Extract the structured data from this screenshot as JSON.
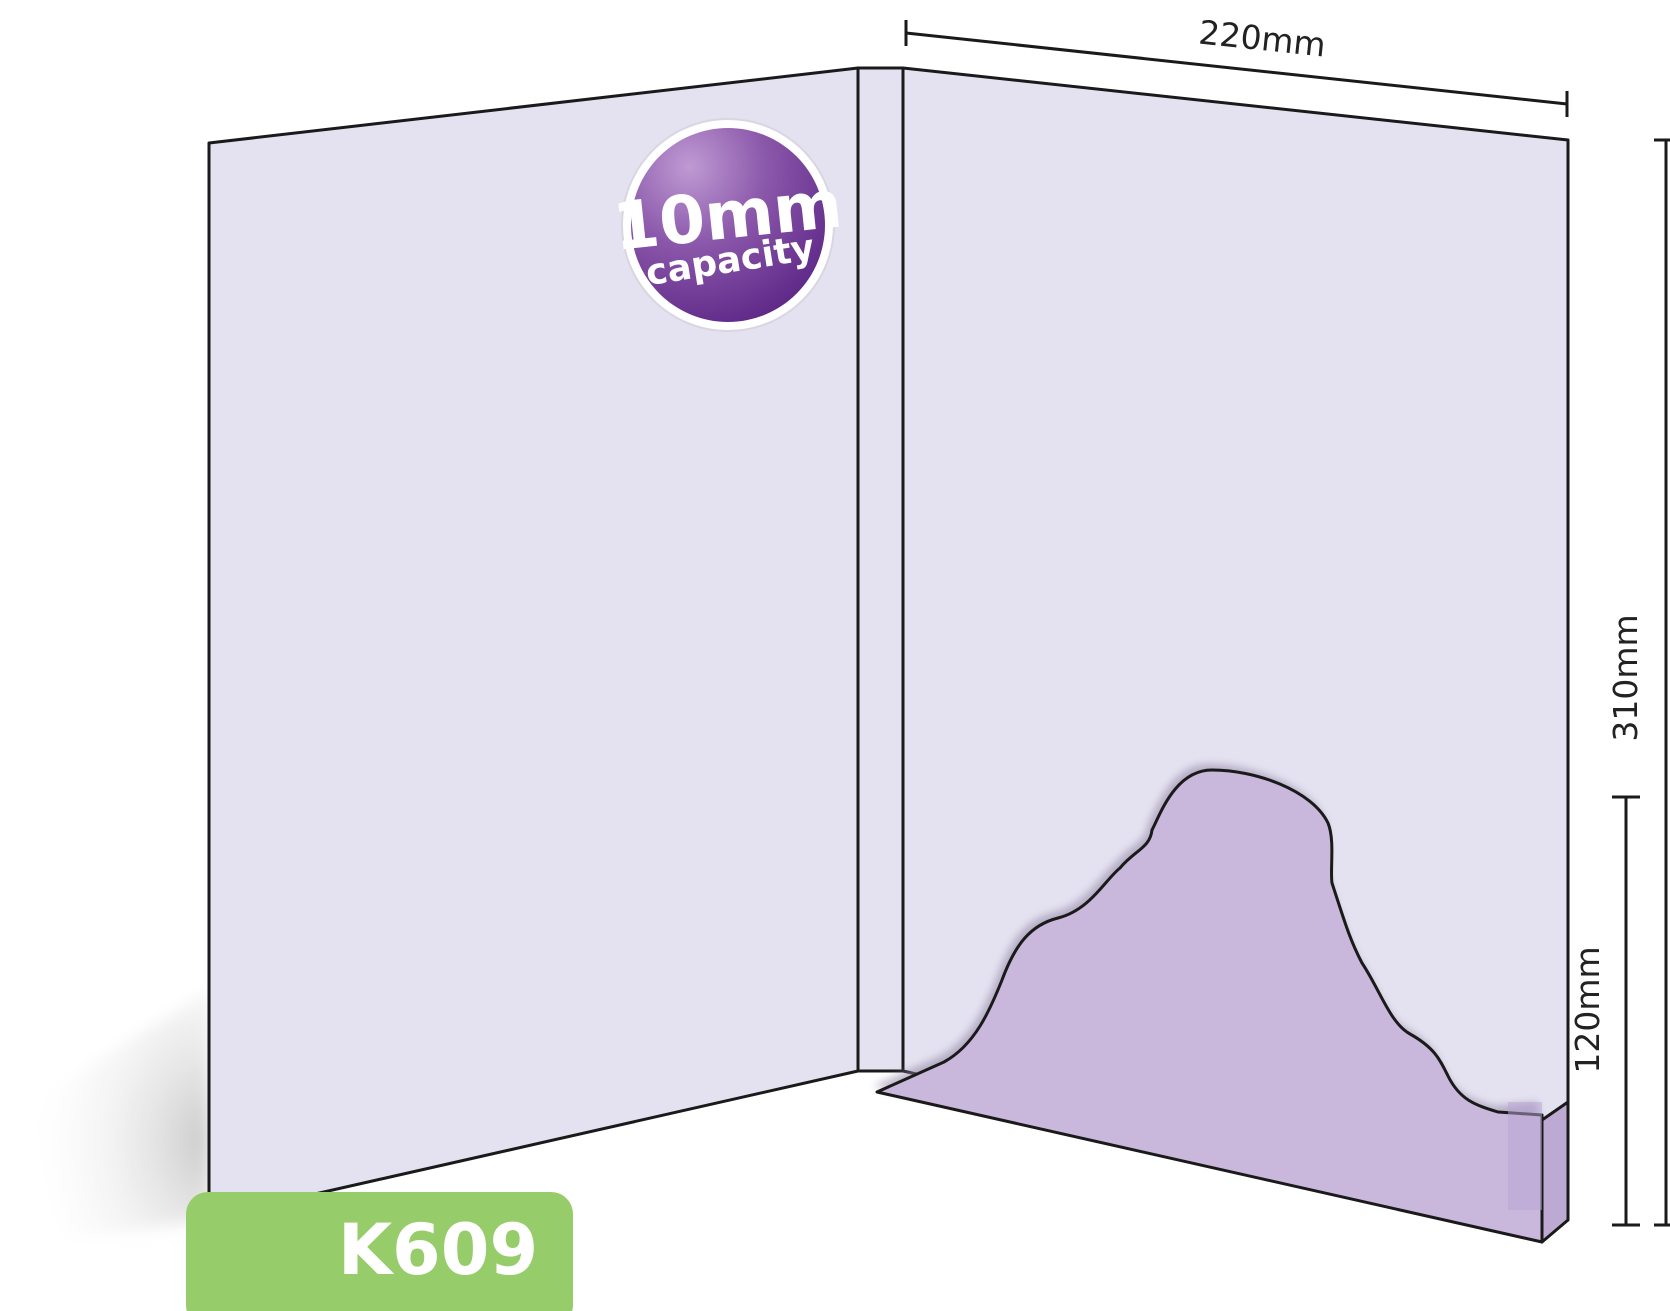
{
  "product": {
    "code": "K609"
  },
  "badge": {
    "line1": "10mm",
    "line2": "capacity"
  },
  "dimensions": {
    "width": "220mm",
    "height": "310mm",
    "pocket_height": "120mm"
  },
  "colors": {
    "panel": "#e4e2f0",
    "pocket": "#c9b8dc",
    "badge_dark": "#6a2f8c",
    "badge_light": "#a77fc0",
    "code_bg": "#96cd6a",
    "outline": "#1a1a1a"
  }
}
